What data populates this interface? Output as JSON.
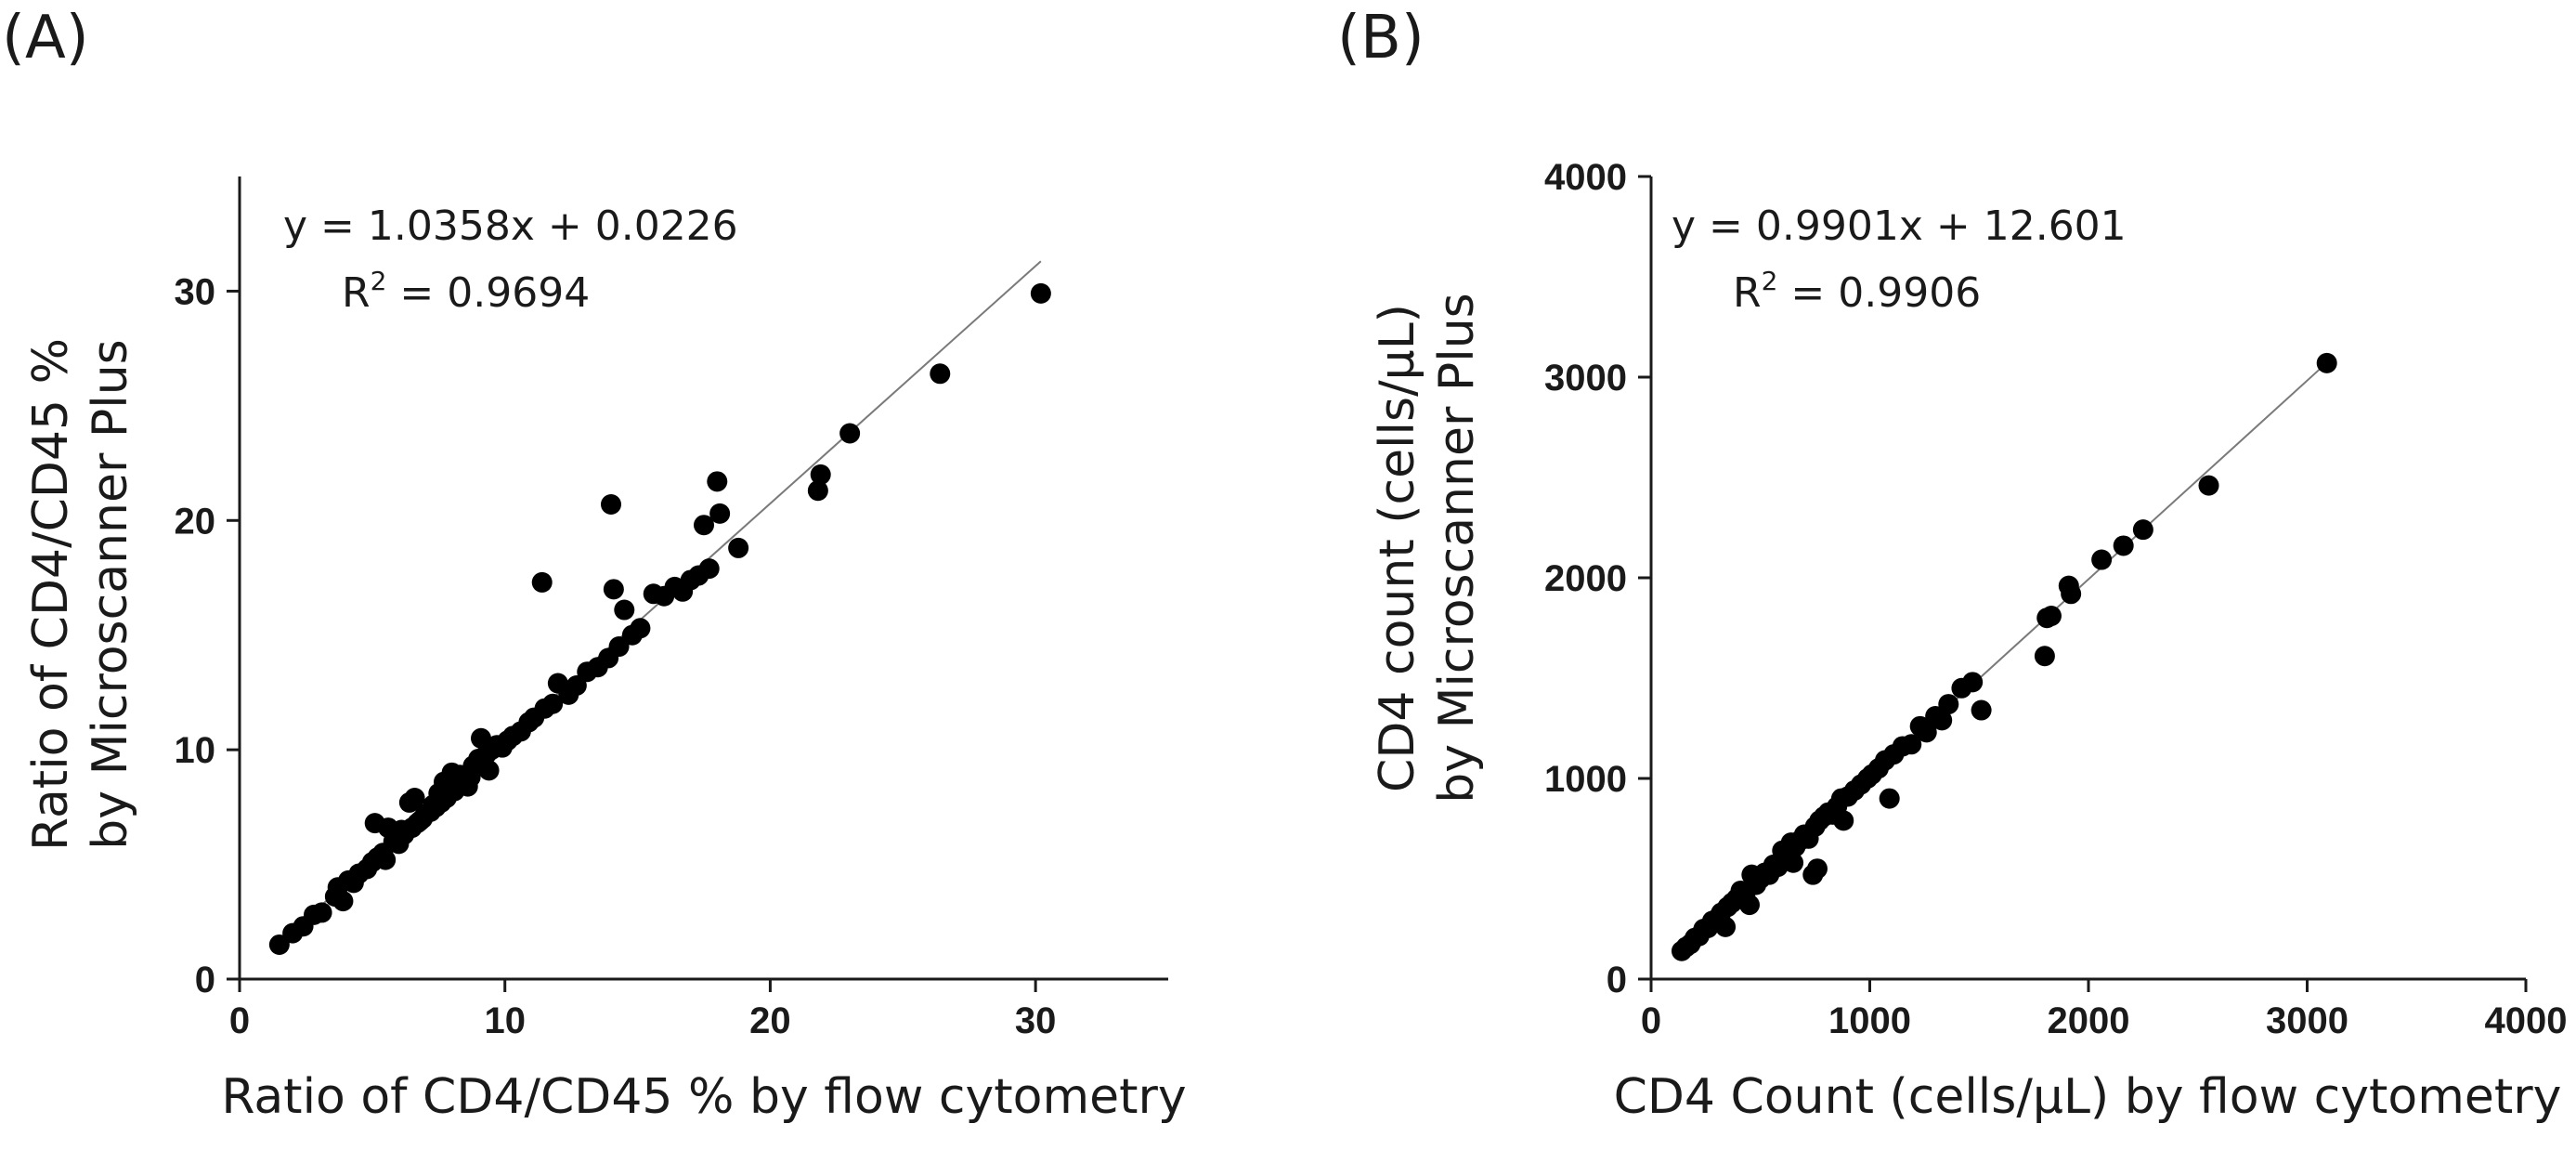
{
  "panels": {
    "a": {
      "label": "(A)",
      "equation": "y = 1.0358x + 0.0226",
      "r2_prefix": "R",
      "r2_sup": "2",
      "r2_value": " = 0.9694",
      "xlabel": "Ratio of CD4/CD45 % by flow cytometry",
      "ylabel_line1": "Ratio of CD4/CD45 %",
      "ylabel_line2": "by Microscanner Plus",
      "x_ticks": [
        "0",
        "10",
        "20",
        "30"
      ],
      "y_ticks": [
        "0",
        "10",
        "20",
        "30"
      ]
    },
    "b": {
      "label": "(B)",
      "equation": "y = 0.9901x + 12.601",
      "r2_prefix": "R",
      "r2_sup": "2",
      "r2_value": " = 0.9906",
      "xlabel": "CD4 Count (cells/μL) by flow cytometry",
      "ylabel_line1": "CD4 count (cells/μL)",
      "ylabel_line2": "by Microscanner Plus",
      "x_ticks": [
        "0",
        "1000",
        "2000",
        "3000",
        "4000"
      ],
      "y_ticks": [
        "0",
        "1000",
        "2000",
        "3000",
        "4000"
      ]
    }
  },
  "chart_data": [
    {
      "type": "scatter",
      "title": "(A)",
      "xlabel": "Ratio of CD4/CD45 % by flow cytometry",
      "ylabel": "Ratio of CD4/CD45 % by Microscanner Plus",
      "xlim": [
        0,
        35
      ],
      "ylim": [
        0,
        35
      ],
      "x_ticks": [
        0,
        10,
        20,
        30
      ],
      "y_ticks": [
        0,
        10,
        20,
        30
      ],
      "trendline": {
        "slope": 1.0358,
        "intercept": 0.0226,
        "x_range": [
          1.5,
          30.2
        ]
      },
      "annotation": "y = 1.0358x + 0.0226, R2 = 0.9694",
      "series": [
        {
          "name": "samples",
          "points": [
            [
              1.5,
              1.5
            ],
            [
              2.0,
              2.0
            ],
            [
              2.4,
              2.3
            ],
            [
              2.8,
              2.8
            ],
            [
              3.1,
              2.9
            ],
            [
              3.6,
              3.6
            ],
            [
              3.7,
              4.0
            ],
            [
              3.9,
              3.4
            ],
            [
              4.1,
              4.3
            ],
            [
              4.3,
              4.2
            ],
            [
              4.5,
              4.6
            ],
            [
              4.8,
              4.8
            ],
            [
              5.0,
              5.1
            ],
            [
              5.1,
              6.8
            ],
            [
              5.2,
              5.3
            ],
            [
              5.4,
              5.5
            ],
            [
              5.5,
              5.2
            ],
            [
              5.6,
              6.6
            ],
            [
              5.8,
              6.0
            ],
            [
              6.0,
              5.9
            ],
            [
              6.1,
              6.5
            ],
            [
              6.2,
              6.3
            ],
            [
              6.4,
              7.7
            ],
            [
              6.5,
              6.6
            ],
            [
              6.6,
              7.9
            ],
            [
              6.7,
              6.8
            ],
            [
              6.8,
              6.9
            ],
            [
              6.9,
              7.0
            ],
            [
              7.0,
              7.2
            ],
            [
              7.2,
              7.3
            ],
            [
              7.3,
              7.6
            ],
            [
              7.4,
              7.5
            ],
            [
              7.5,
              8.1
            ],
            [
              7.6,
              7.7
            ],
            [
              7.7,
              8.6
            ],
            [
              7.8,
              7.9
            ],
            [
              7.9,
              8.3
            ],
            [
              8.0,
              9.0
            ],
            [
              8.1,
              8.2
            ],
            [
              8.2,
              8.6
            ],
            [
              8.3,
              8.9
            ],
            [
              8.5,
              8.7
            ],
            [
              8.6,
              8.4
            ],
            [
              8.7,
              8.8
            ],
            [
              8.8,
              9.3
            ],
            [
              9.0,
              9.6
            ],
            [
              9.1,
              10.5
            ],
            [
              9.2,
              9.4
            ],
            [
              9.3,
              9.8
            ],
            [
              9.4,
              9.1
            ],
            [
              9.5,
              10.0
            ],
            [
              9.7,
              10.2
            ],
            [
              9.9,
              10.1
            ],
            [
              10.1,
              10.4
            ],
            [
              10.3,
              10.6
            ],
            [
              10.6,
              10.8
            ],
            [
              10.9,
              11.2
            ],
            [
              11.1,
              11.4
            ],
            [
              11.4,
              17.3
            ],
            [
              11.5,
              11.8
            ],
            [
              11.8,
              12.0
            ],
            [
              12.0,
              12.9
            ],
            [
              12.4,
              12.4
            ],
            [
              12.7,
              12.8
            ],
            [
              13.1,
              13.4
            ],
            [
              13.5,
              13.6
            ],
            [
              13.9,
              14.0
            ],
            [
              14.0,
              20.7
            ],
            [
              14.1,
              17.0
            ],
            [
              14.3,
              14.5
            ],
            [
              14.5,
              16.1
            ],
            [
              14.8,
              15.0
            ],
            [
              15.1,
              15.3
            ],
            [
              15.6,
              16.8
            ],
            [
              16.0,
              16.7
            ],
            [
              16.4,
              17.1
            ],
            [
              16.7,
              16.9
            ],
            [
              17.0,
              17.4
            ],
            [
              17.3,
              17.6
            ],
            [
              17.5,
              19.8
            ],
            [
              17.7,
              17.9
            ],
            [
              18.0,
              21.7
            ],
            [
              18.1,
              20.3
            ],
            [
              18.8,
              18.8
            ],
            [
              21.8,
              21.3
            ],
            [
              21.9,
              22.0
            ],
            [
              23.0,
              23.8
            ],
            [
              26.4,
              26.4
            ],
            [
              30.2,
              29.9
            ]
          ]
        }
      ]
    },
    {
      "type": "scatter",
      "title": "(B)",
      "xlabel": "CD4 Count (cells/μL) by flow cytometry",
      "ylabel": "CD4 count (cells/μL) by Microscanner Plus",
      "xlim": [
        0,
        4000
      ],
      "ylim": [
        0,
        4000
      ],
      "x_ticks": [
        0,
        1000,
        2000,
        3000,
        4000
      ],
      "y_ticks": [
        0,
        1000,
        2000,
        3000,
        4000
      ],
      "trendline": {
        "slope": 0.9901,
        "intercept": 12.601,
        "x_range": [
          130,
          3090
        ]
      },
      "annotation": "y = 0.9901x + 12.601, R2 = 0.9906",
      "series": [
        {
          "name": "samples",
          "points": [
            [
              140,
              140
            ],
            [
              160,
              160
            ],
            [
              180,
              175
            ],
            [
              200,
              205
            ],
            [
              220,
              215
            ],
            [
              240,
              250
            ],
            [
              260,
              255
            ],
            [
              280,
              290
            ],
            [
              300,
              300
            ],
            [
              320,
              330
            ],
            [
              340,
              260
            ],
            [
              350,
              360
            ],
            [
              370,
              380
            ],
            [
              390,
              400
            ],
            [
              410,
              440
            ],
            [
              430,
              420
            ],
            [
              450,
              370
            ],
            [
              460,
              520
            ],
            [
              480,
              470
            ],
            [
              500,
              500
            ],
            [
              520,
              530
            ],
            [
              540,
              520
            ],
            [
              560,
              570
            ],
            [
              580,
              560
            ],
            [
              600,
              640
            ],
            [
              620,
              610
            ],
            [
              640,
              680
            ],
            [
              650,
              580
            ],
            [
              660,
              660
            ],
            [
              680,
              690
            ],
            [
              700,
              720
            ],
            [
              720,
              700
            ],
            [
              740,
              520
            ],
            [
              750,
              760
            ],
            [
              760,
              550
            ],
            [
              770,
              790
            ],
            [
              790,
              810
            ],
            [
              810,
              830
            ],
            [
              830,
              820
            ],
            [
              850,
              860
            ],
            [
              870,
              900
            ],
            [
              880,
              790
            ],
            [
              900,
              910
            ],
            [
              930,
              940
            ],
            [
              960,
              970
            ],
            [
              990,
              1000
            ],
            [
              1010,
              1020
            ],
            [
              1040,
              1050
            ],
            [
              1070,
              1090
            ],
            [
              1090,
              900
            ],
            [
              1110,
              1120
            ],
            [
              1150,
              1160
            ],
            [
              1190,
              1170
            ],
            [
              1230,
              1260
            ],
            [
              1260,
              1230
            ],
            [
              1300,
              1310
            ],
            [
              1330,
              1290
            ],
            [
              1360,
              1370
            ],
            [
              1420,
              1450
            ],
            [
              1470,
              1480
            ],
            [
              1510,
              1340
            ],
            [
              1800,
              1610
            ],
            [
              1810,
              1800
            ],
            [
              1830,
              1810
            ],
            [
              1910,
              1960
            ],
            [
              1920,
              1920
            ],
            [
              2060,
              2090
            ],
            [
              2160,
              2160
            ],
            [
              2250,
              2240
            ],
            [
              2550,
              2460
            ],
            [
              3090,
              3070
            ]
          ]
        }
      ]
    }
  ]
}
